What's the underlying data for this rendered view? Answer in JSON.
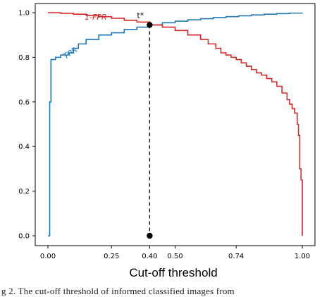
{
  "chart_data": {
    "type": "line",
    "xlabel": "Cut-off threshold",
    "ylabel": "",
    "xlim": [
      0,
      1
    ],
    "ylim": [
      0,
      1
    ],
    "x_ticks": [
      0.0,
      0.25,
      0.4,
      0.5,
      0.74,
      1.0
    ],
    "x_tick_labels": [
      "0.00",
      "0.25",
      "0.40",
      "0.50",
      "0.74",
      "1.00"
    ],
    "y_ticks": [
      0.0,
      0.2,
      0.4,
      0.6,
      0.8,
      1.0
    ],
    "y_tick_labels": [
      "0.0",
      "0.2",
      "0.4",
      "0.6",
      "0.8",
      "1.0"
    ],
    "series": [
      {
        "name": "TPR",
        "color": "#1f77b4",
        "x": [
          0.0,
          0.005,
          0.007,
          0.01,
          0.012,
          0.015,
          0.02,
          0.03,
          0.04,
          0.05,
          0.06,
          0.07,
          0.08,
          0.1,
          0.12,
          0.15,
          0.2,
          0.25,
          0.3,
          0.35,
          0.4,
          0.45,
          0.5,
          0.55,
          0.6,
          0.65,
          0.7,
          0.75,
          0.8,
          0.85,
          0.9,
          0.95,
          1.0
        ],
        "y": [
          0.0,
          0.0,
          0.6,
          0.6,
          0.79,
          0.79,
          0.79,
          0.8,
          0.8,
          0.81,
          0.81,
          0.81,
          0.82,
          0.84,
          0.86,
          0.88,
          0.9,
          0.91,
          0.925,
          0.935,
          0.945,
          0.955,
          0.962,
          0.968,
          0.973,
          0.978,
          0.982,
          0.986,
          0.99,
          0.993,
          0.996,
          0.998,
          1.0
        ]
      },
      {
        "name": "1-FPR",
        "color": "#d62728",
        "x": [
          0.0,
          0.05,
          0.1,
          0.15,
          0.2,
          0.25,
          0.3,
          0.35,
          0.4,
          0.45,
          0.5,
          0.55,
          0.6,
          0.63,
          0.66,
          0.68,
          0.7,
          0.72,
          0.74,
          0.76,
          0.78,
          0.8,
          0.82,
          0.84,
          0.86,
          0.88,
          0.9,
          0.92,
          0.94,
          0.95,
          0.96,
          0.97,
          0.98,
          0.985,
          0.99,
          0.995,
          1.0
        ],
        "y": [
          1.0,
          0.997,
          0.993,
          0.988,
          0.982,
          0.975,
          0.966,
          0.958,
          0.945,
          0.935,
          0.92,
          0.9,
          0.88,
          0.86,
          0.84,
          0.82,
          0.81,
          0.8,
          0.79,
          0.775,
          0.76,
          0.745,
          0.73,
          0.72,
          0.705,
          0.69,
          0.67,
          0.64,
          0.61,
          0.59,
          0.57,
          0.55,
          0.5,
          0.45,
          0.3,
          0.25,
          0.0
        ]
      }
    ],
    "annotations": [
      {
        "text": "t*",
        "x": 0.4,
        "y": 0.945
      },
      {
        "text": "1-FPR",
        "color": "#d62728"
      },
      {
        "text": "TPR",
        "color": "#1f77b4"
      }
    ],
    "vline": {
      "x": 0.4,
      "y_from": 0.0,
      "y_to": 0.945,
      "style": "dashed",
      "color": "#000000"
    },
    "grid": false,
    "legend": "none"
  },
  "caption": {
    "text": "g 2. The cut-off threshold of informed classified images from"
  }
}
